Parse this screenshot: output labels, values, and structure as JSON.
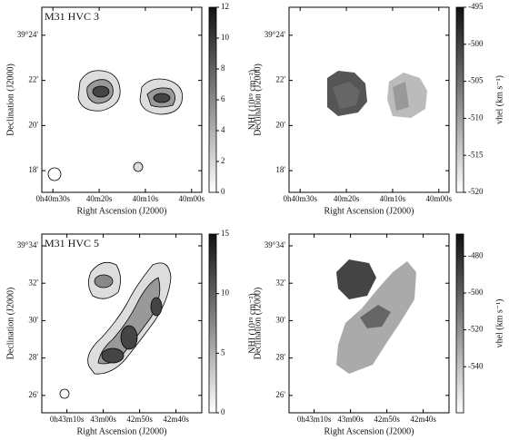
{
  "chart_data": [
    {
      "type": "map",
      "title": "M31 HVC 3",
      "x_label": "Right Ascension (J2000)",
      "y_label": "Declination (J2000)",
      "xlim": [
        32.4,
        -2.2
      ],
      "xticks": [
        {
          "value": 30,
          "label": "0h40m30s"
        },
        {
          "value": 20,
          "label": "40m20s"
        },
        {
          "value": 10,
          "label": "40m10s"
        },
        {
          "value": 0,
          "label": "40m00s"
        }
      ],
      "ylim": [
        17.04,
        25.24
      ],
      "yticks": [
        {
          "value": 24,
          "label": "39°24'"
        },
        {
          "value": 22,
          "label": "22'"
        },
        {
          "value": 20,
          "label": "20'"
        },
        {
          "value": 18,
          "label": "18'"
        }
      ],
      "colorbar": {
        "label": "NHI (10¹⁹ cm⁻²)",
        "lim": [
          0,
          12
        ],
        "ticks": [
          0,
          2,
          4,
          6,
          8,
          10,
          12
        ]
      }
    },
    {
      "type": "map",
      "x_label": "Right Ascension (J2000)",
      "y_label": "Declination (J2000)",
      "xlim": [
        32.4,
        -2.2
      ],
      "xticks": [
        {
          "value": 30,
          "label": "0h40m30s"
        },
        {
          "value": 20,
          "label": "40m20s"
        },
        {
          "value": 10,
          "label": "40m10s"
        },
        {
          "value": 0,
          "label": "40m00s"
        }
      ],
      "ylim": [
        17.04,
        25.24
      ],
      "yticks": [
        {
          "value": 24,
          "label": "39°24'"
        },
        {
          "value": 22,
          "label": "22'"
        },
        {
          "value": 20,
          "label": "20'"
        },
        {
          "value": 18,
          "label": "18'"
        }
      ],
      "colorbar": {
        "label": "vhel (km s⁻¹)",
        "lim": [
          -520,
          -495
        ],
        "ticks": [
          -495,
          -500,
          -505,
          -510,
          -515,
          -520
        ]
      }
    },
    {
      "type": "map",
      "title": "M31 HVC 5",
      "x_label": "Right Ascension (J2000)",
      "y_label": "Declination (J2000)",
      "xlim": [
        76.9,
        32.9
      ],
      "xticks": [
        {
          "value": 70,
          "label": "0h43m10s"
        },
        {
          "value": 60,
          "label": "43m00s"
        },
        {
          "value": 50,
          "label": "42m50s"
        },
        {
          "value": 40,
          "label": "42m40s"
        }
      ],
      "ylim": [
        25.07,
        34.63
      ],
      "yticks": [
        {
          "value": 34,
          "label": "39°34'"
        },
        {
          "value": 32,
          "label": "32'"
        },
        {
          "value": 30,
          "label": "30'"
        },
        {
          "value": 28,
          "label": "28'"
        },
        {
          "value": 26,
          "label": "26'"
        }
      ],
      "colorbar": {
        "label": "NHI (10¹⁹ cm⁻²)",
        "lim": [
          0,
          15
        ],
        "ticks": [
          0,
          5,
          10,
          15
        ]
      }
    },
    {
      "type": "map",
      "x_label": "Right Ascension (J2000)",
      "y_label": "Declination (J2000)",
      "xlim": [
        76.9,
        32.9
      ],
      "xticks": [
        {
          "value": 70,
          "label": "0h43m10s"
        },
        {
          "value": 60,
          "label": "43m00s"
        },
        {
          "value": 50,
          "label": "42m50s"
        },
        {
          "value": 40,
          "label": "42m40s"
        }
      ],
      "ylim": [
        25.07,
        34.63
      ],
      "yticks": [
        {
          "value": 34,
          "label": "39°34'"
        },
        {
          "value": 32,
          "label": "32'"
        },
        {
          "value": 30,
          "label": "30'"
        },
        {
          "value": 28,
          "label": "28'"
        },
        {
          "value": 26,
          "label": "26'"
        }
      ],
      "colorbar": {
        "label": "vhel (km s⁻¹)",
        "lim": [
          -565,
          -468
        ],
        "ticks": [
          -480,
          -500,
          -520,
          -540
        ]
      }
    }
  ]
}
